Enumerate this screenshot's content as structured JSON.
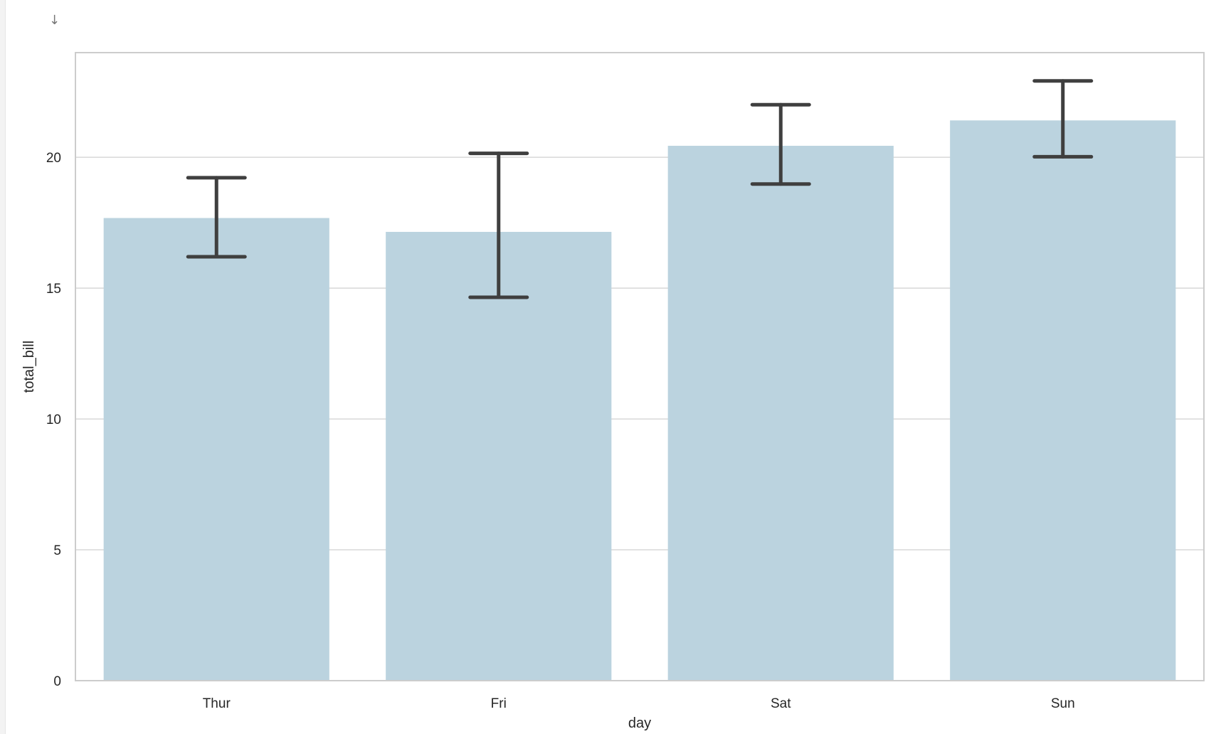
{
  "cell": {
    "output_marker": "↓"
  },
  "chart_data": {
    "type": "bar",
    "categories": [
      "Thur",
      "Fri",
      "Sat",
      "Sun"
    ],
    "values": [
      17.68,
      17.15,
      20.44,
      21.41
    ],
    "error_bars": {
      "lower": [
        16.2,
        14.65,
        18.98,
        20.02
      ],
      "upper": [
        19.22,
        20.15,
        22.01,
        22.92
      ]
    },
    "xlabel": "day",
    "ylabel": "total_bill",
    "ylim": [
      0,
      24
    ],
    "yticks": [
      0,
      5,
      10,
      15,
      20
    ],
    "grid": true,
    "colors": {
      "bar": "#bbd3df",
      "error_bar": "#3f3f3f",
      "grid": "#d8d8d8",
      "frame": "#cccccc",
      "text": "#262626"
    }
  }
}
